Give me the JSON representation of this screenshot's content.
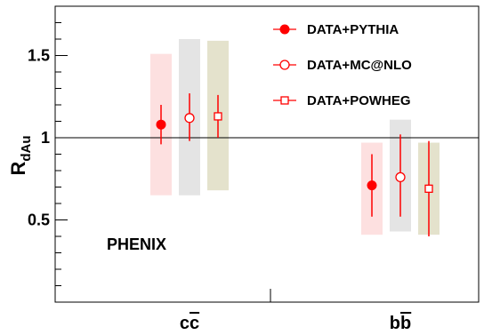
{
  "chart_data": {
    "type": "scatter",
    "ylabel": "R",
    "ylabel_subscript": "dAu",
    "ylim": [
      0.0,
      1.8
    ],
    "yticks": [
      {
        "value": 0.5,
        "label": "0.5"
      },
      {
        "value": 1.0,
        "label": "1"
      },
      {
        "value": 1.5,
        "label": "1.5"
      }
    ],
    "reference_line": 1.0,
    "categories": [
      {
        "base": "c",
        "bar": "c"
      },
      {
        "base": "b",
        "bar": "b"
      }
    ],
    "annotation": "PHENIX",
    "legend_position": "top-right",
    "colors": {
      "marker": "#ff0000",
      "axis": "#000000"
    },
    "series": [
      {
        "name": "DATA+PYTHIA",
        "marker": "filled-circle",
        "band_color": "#fde0e0",
        "points": [
          {
            "category": 0,
            "y": 1.08,
            "stat_low": 0.96,
            "stat_high": 1.2,
            "sys_low": 0.65,
            "sys_high": 1.51
          },
          {
            "category": 1,
            "y": 0.71,
            "stat_low": 0.52,
            "stat_high": 0.9,
            "sys_low": 0.41,
            "sys_high": 0.97
          }
        ]
      },
      {
        "name": "DATA+MC@NLO",
        "marker": "open-circle",
        "band_color": "#e4e4e4",
        "points": [
          {
            "category": 0,
            "y": 1.12,
            "stat_low": 0.98,
            "stat_high": 1.27,
            "sys_low": 0.65,
            "sys_high": 1.6
          },
          {
            "category": 1,
            "y": 0.76,
            "stat_low": 0.52,
            "stat_high": 1.02,
            "sys_low": 0.43,
            "sys_high": 1.11
          }
        ]
      },
      {
        "name": "DATA+POWHEG",
        "marker": "open-square",
        "band_color": "#e4e2cc",
        "points": [
          {
            "category": 0,
            "y": 1.13,
            "stat_low": 1.0,
            "stat_high": 1.26,
            "sys_low": 0.68,
            "sys_high": 1.59
          },
          {
            "category": 1,
            "y": 0.69,
            "stat_low": 0.4,
            "stat_high": 0.98,
            "sys_low": 0.41,
            "sys_high": 0.97
          }
        ]
      }
    ]
  }
}
